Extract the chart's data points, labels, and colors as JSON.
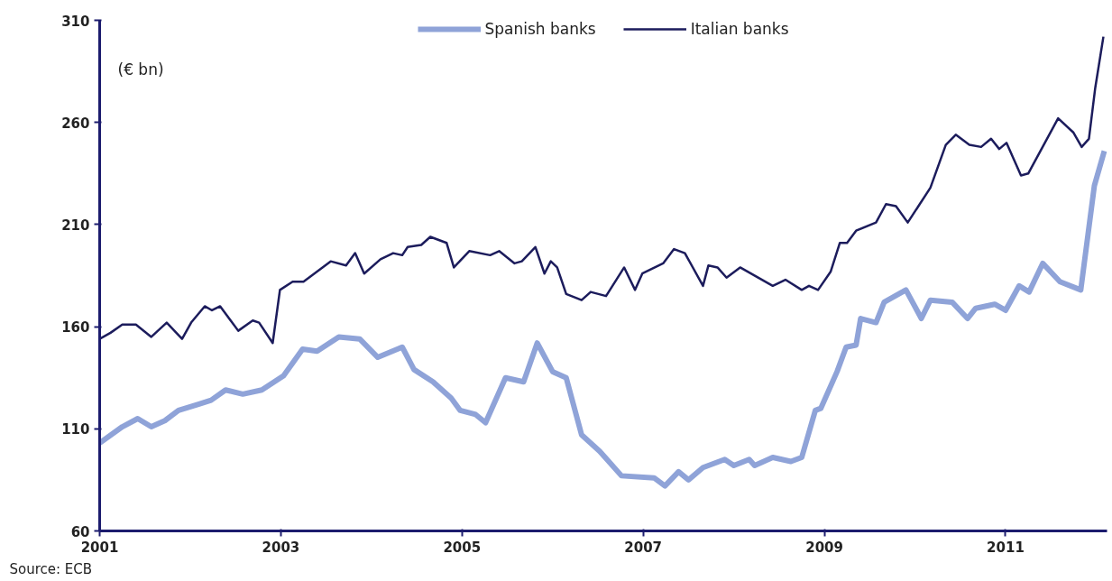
{
  "chart_data": {
    "type": "line",
    "ylabel": "(€ bn)",
    "xlim": [
      2001,
      2012.12
    ],
    "xticks": [
      2001,
      2003,
      2005,
      2007,
      2009,
      2011
    ],
    "ylim": [
      60,
      310
    ],
    "yticks": [
      60,
      110,
      160,
      210,
      260,
      310
    ],
    "grid": false,
    "legend": "top",
    "marker": "none",
    "line_style": "solid",
    "annotations": [
      "Source: ECB"
    ],
    "series": [
      {
        "name": "Spanish banks",
        "color": "#8fa3d8",
        "x": [
          2001.0,
          2001.25,
          2001.42,
          2001.57,
          2001.72,
          2001.87,
          2002.09,
          2002.23,
          2002.39,
          2002.58,
          2002.79,
          2003.03,
          2003.24,
          2003.4,
          2003.64,
          2003.87,
          2004.07,
          2004.34,
          2004.47,
          2004.68,
          2004.88,
          2004.98,
          2005.15,
          2005.26,
          2005.48,
          2005.68,
          2005.83,
          2006.0,
          2006.15,
          2006.32,
          2006.52,
          2006.76,
          2007.12,
          2007.24,
          2007.39,
          2007.5,
          2007.66,
          2007.9,
          2008.0,
          2008.17,
          2008.23,
          2008.43,
          2008.63,
          2008.75,
          2008.9,
          2008.96,
          2009.14,
          2009.24,
          2009.35,
          2009.4,
          2009.57,
          2009.66,
          2009.9,
          2010.07,
          2010.17,
          2010.41,
          2010.58,
          2010.67,
          2010.88,
          2011.0,
          2011.15,
          2011.26,
          2011.41,
          2011.6,
          2011.83,
          2011.98,
          2012.09
        ],
        "values": [
          103,
          111,
          115,
          111,
          114,
          119,
          122,
          124,
          129,
          127,
          129,
          136,
          149,
          148,
          155,
          154,
          145,
          150,
          139,
          133,
          125,
          119,
          117,
          113,
          135,
          133,
          152,
          138,
          135,
          107,
          99,
          87,
          86,
          82,
          89,
          85,
          91,
          95,
          92,
          95,
          92,
          96,
          94,
          96,
          119,
          120,
          138,
          150,
          151,
          164,
          162,
          172,
          178,
          164,
          173,
          172,
          164,
          169,
          171,
          168,
          180,
          177,
          191,
          182,
          178,
          229,
          246
        ]
      },
      {
        "name": "Italian banks",
        "color": "#1c1c5c",
        "x": [
          2001.0,
          2001.12,
          2001.25,
          2001.4,
          2001.57,
          2001.74,
          2001.91,
          2002.01,
          2002.16,
          2002.24,
          2002.33,
          2002.53,
          2002.69,
          2002.76,
          2002.91,
          2002.99,
          2003.13,
          2003.25,
          2003.37,
          2003.55,
          2003.72,
          2003.82,
          2003.92,
          2004.1,
          2004.24,
          2004.34,
          2004.4,
          2004.55,
          2004.65,
          2004.83,
          2004.91,
          2005.08,
          2005.31,
          2005.41,
          2005.58,
          2005.66,
          2005.81,
          2005.91,
          2005.98,
          2006.05,
          2006.15,
          2006.32,
          2006.42,
          2006.59,
          2006.79,
          2006.91,
          2006.99,
          2007.22,
          2007.34,
          2007.46,
          2007.66,
          2007.72,
          2007.82,
          2007.92,
          2008.07,
          2008.43,
          2008.57,
          2008.75,
          2008.83,
          2008.93,
          2009.07,
          2009.17,
          2009.25,
          2009.35,
          2009.57,
          2009.68,
          2009.79,
          2009.92,
          2010.17,
          2010.34,
          2010.45,
          2010.6,
          2010.73,
          2010.84,
          2010.93,
          2011.01,
          2011.17,
          2011.25,
          2011.58,
          2011.75,
          2011.84,
          2011.92,
          2011.99,
          2012.08
        ],
        "values": [
          154,
          157,
          161,
          161,
          155,
          162,
          154,
          162,
          170,
          168,
          170,
          158,
          163,
          162,
          152,
          178,
          182,
          182,
          186,
          192,
          190,
          196,
          186,
          193,
          196,
          195,
          199,
          200,
          204,
          201,
          189,
          197,
          195,
          197,
          191,
          192,
          199,
          186,
          192,
          189,
          176,
          173,
          177,
          175,
          189,
          178,
          186,
          191,
          198,
          196,
          180,
          190,
          189,
          184,
          189,
          180,
          183,
          178,
          180,
          178,
          187,
          201,
          201,
          207,
          211,
          220,
          219,
          211,
          228,
          249,
          254,
          249,
          248,
          252,
          247,
          250,
          234,
          235,
          262,
          255,
          248,
          252,
          277,
          302
        ]
      }
    ]
  }
}
